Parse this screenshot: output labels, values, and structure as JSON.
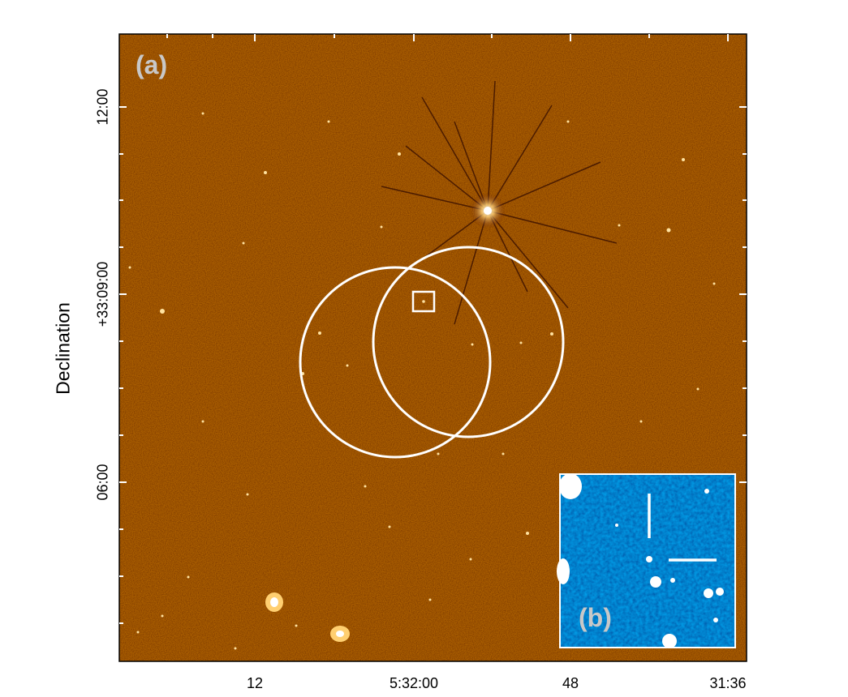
{
  "figure": {
    "panel_a_label": "(a)",
    "panel_b_label": "(b)",
    "y_axis_label": "Declination",
    "y_ticks": [
      "12:00",
      "+33:09:00",
      "06:00"
    ],
    "x_ticks": [
      "12",
      "5:32:00",
      "48",
      "31:36"
    ],
    "colors": {
      "main_background": "#6a1a05",
      "inset_background": "#0d3ea0",
      "overlay": "#ffffff",
      "label_text": "#c8c8c8"
    },
    "overlays": [
      "error-circle-1",
      "error-circle-2",
      "source-box",
      "inset-crosshair"
    ]
  }
}
